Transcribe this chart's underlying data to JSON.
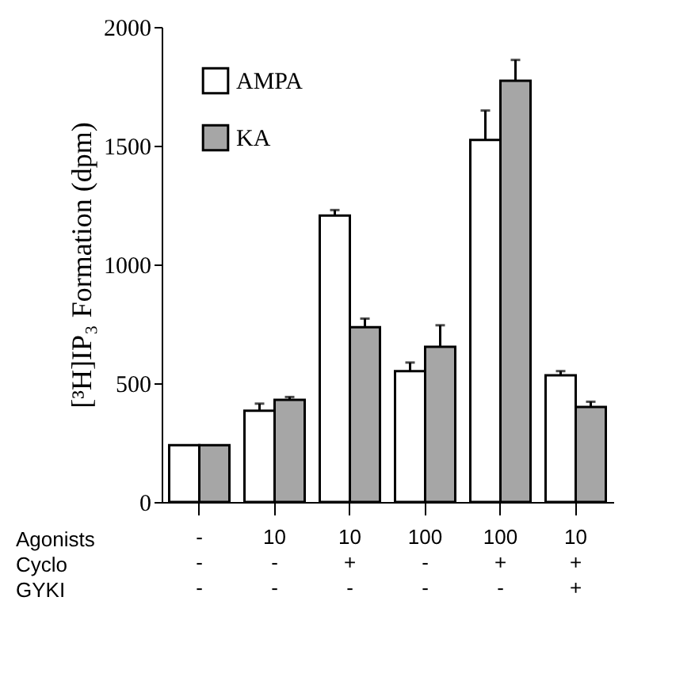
{
  "chart_data": {
    "type": "bar",
    "ylabel": "[³H]IP₃ Formation (dpm)",
    "categories": [
      "-\n-\n-",
      "10\n-\n-",
      "10\n+\n-",
      "100\n-\n-",
      "100\n+\n-",
      "10\n+\n+"
    ],
    "annotations": [
      "Agonists",
      "Cyclo",
      "GYKI"
    ],
    "series": [
      {
        "name": "AMPA",
        "color": "#ffffff",
        "values": [
          239,
          384,
          1206,
          551,
          1524,
          533
        ],
        "errors": [
          null,
          30,
          23,
          36,
          124,
          18
        ]
      },
      {
        "name": "KA",
        "color": "#a6a6a6",
        "values": [
          239,
          430,
          736,
          653,
          1773,
          400
        ],
        "errors": [
          null,
          12,
          36,
          91,
          88,
          22
        ]
      }
    ],
    "ylim": [
      0,
      2000
    ],
    "yticks": [
      0,
      500,
      1000,
      1500,
      2000
    ],
    "grid": false,
    "legend": "top left"
  }
}
